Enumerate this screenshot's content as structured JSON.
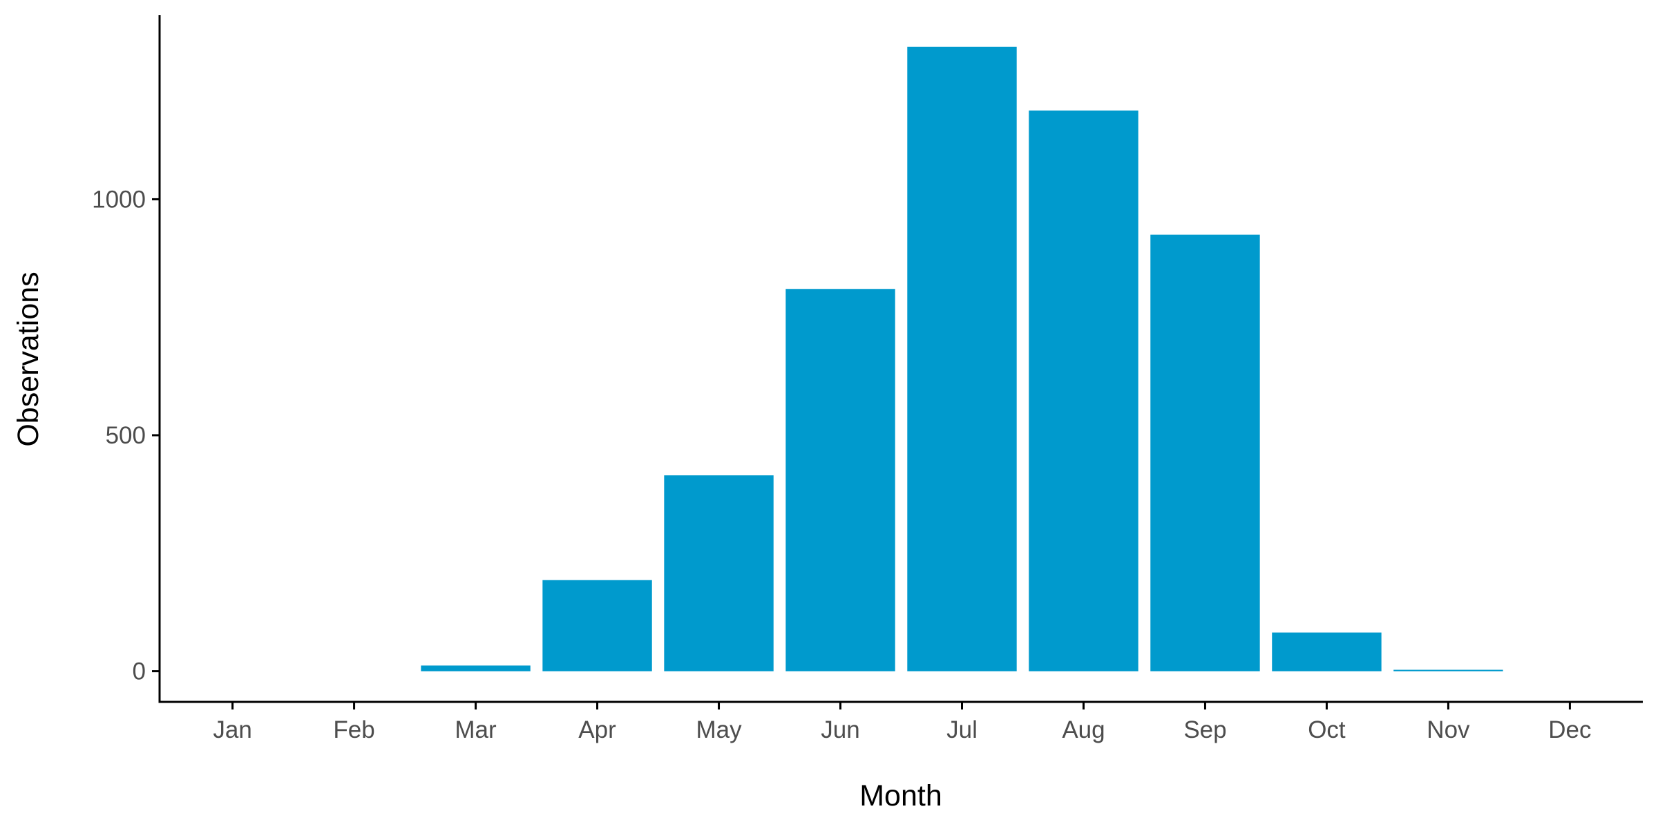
{
  "chart_data": {
    "type": "bar",
    "title": "",
    "xlabel": "Month",
    "ylabel": "Observations",
    "categories": [
      "Jan",
      "Feb",
      "Mar",
      "Apr",
      "May",
      "Jun",
      "Jul",
      "Aug",
      "Sep",
      "Oct",
      "Nov",
      "Dec"
    ],
    "values": [
      0,
      0,
      12,
      193,
      415,
      810,
      1323,
      1188,
      925,
      82,
      3,
      0
    ],
    "y_ticks": [
      0,
      500,
      1000
    ],
    "ylim": [
      -65,
      1390
    ],
    "grid": false,
    "legend": "none",
    "bar_color": "#009ACD",
    "axis_color": "#000000",
    "tick_label_color": "#4D4D4D"
  }
}
